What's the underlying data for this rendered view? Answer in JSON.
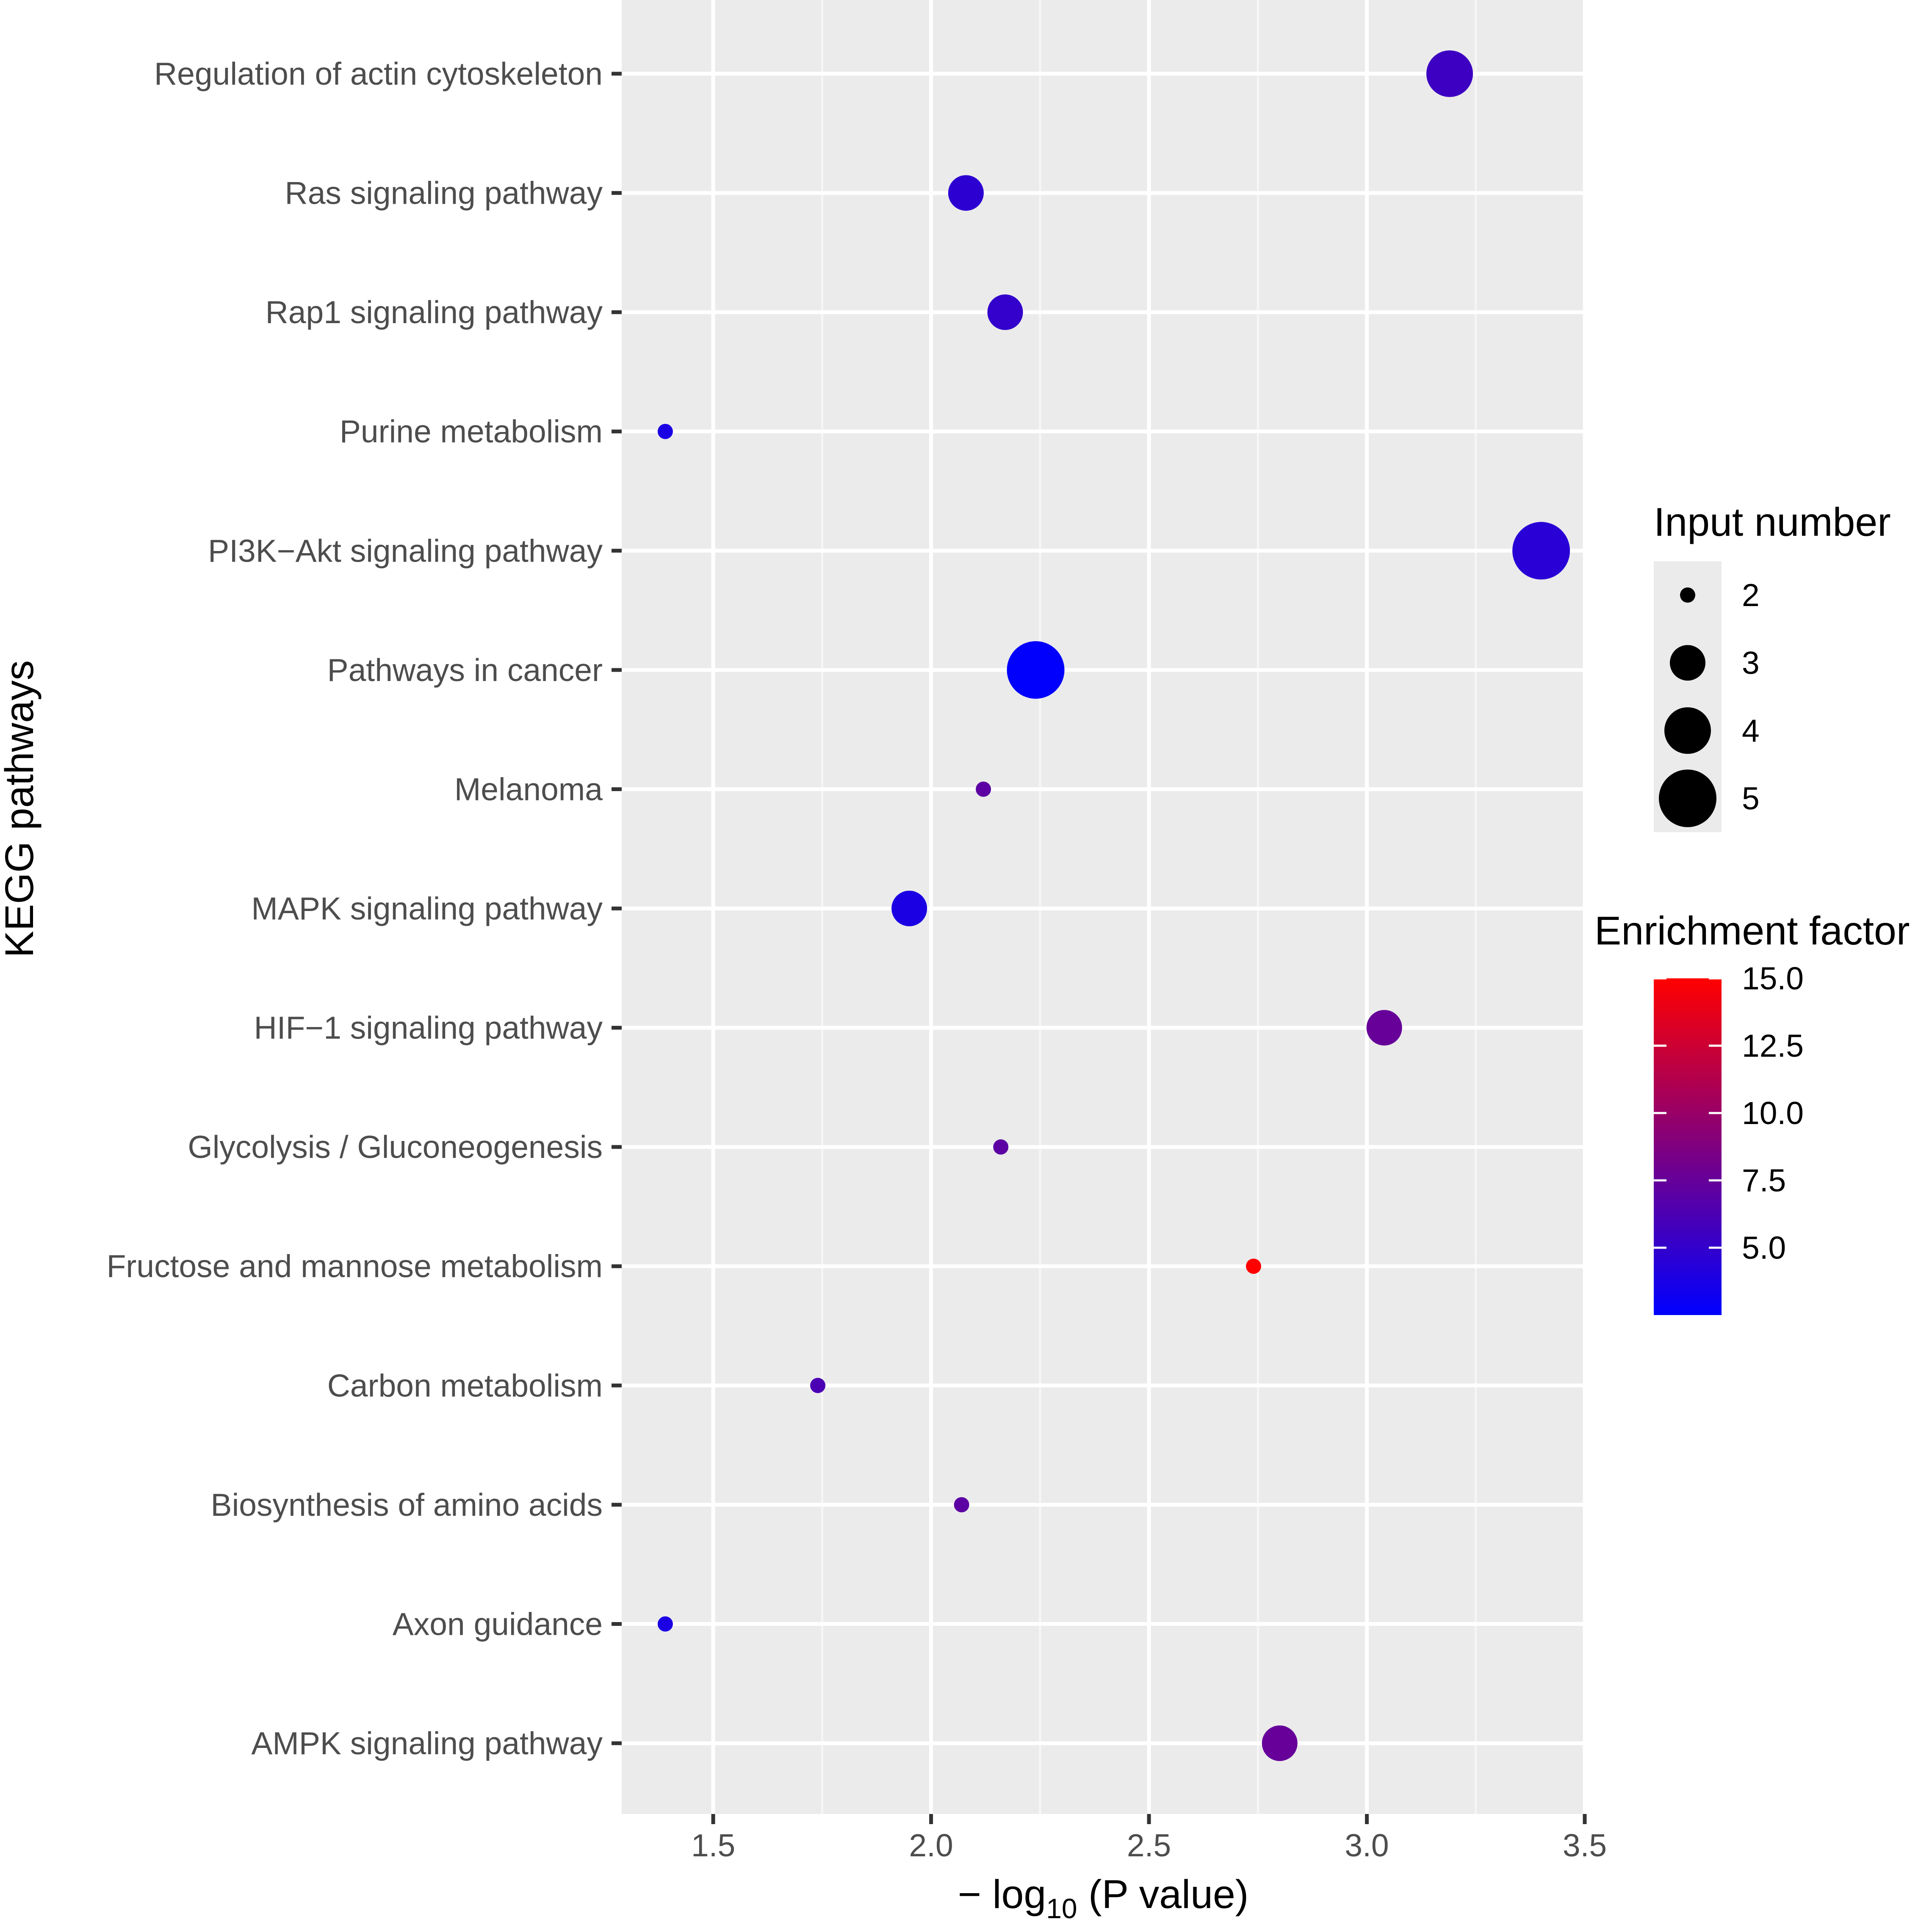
{
  "chart_data": {
    "type": "scatter",
    "title": "",
    "xlabel": {
      "prefix": "− log",
      "subscript": "10",
      "suffix": " (P value)"
    },
    "ylabel": "KEGG pathways",
    "xlim": [
      1.29,
      3.5
    ],
    "x_ticks": [
      1.5,
      2.0,
      2.5,
      3.0,
      3.5
    ],
    "x_tick_labels": [
      "1.5",
      "2.0",
      "2.5",
      "3.0",
      "3.5"
    ],
    "x_minor_gridlines": [
      1.25,
      1.75,
      2.25,
      2.75,
      3.25
    ],
    "grid": true,
    "categories": [
      "Regulation of actin cytoskeleton",
      "Ras signaling pathway",
      "Rap1 signaling pathway",
      "Purine metabolism",
      "PI3K−Akt signaling pathway",
      "Pathways in cancer",
      "Melanoma",
      "MAPK signaling pathway",
      "HIF−1 signaling pathway",
      "Glycolysis / Gluconeogenesis",
      "Fructose and mannose metabolism",
      "Carbon metabolism",
      "Biosynthesis of amino acids",
      "Axon guidance",
      "AMPK signaling pathway"
    ],
    "points": [
      {
        "pathway": "Regulation of actin cytoskeleton",
        "x": 3.19,
        "input_number": 4,
        "enrichment_factor": 5.5
      },
      {
        "pathway": "Ras signaling pathway",
        "x": 2.08,
        "input_number": 3,
        "enrichment_factor": 4.7
      },
      {
        "pathway": "Rap1 signaling pathway",
        "x": 2.17,
        "input_number": 3,
        "enrichment_factor": 5.0
      },
      {
        "pathway": "Purine metabolism",
        "x": 1.39,
        "input_number": 2,
        "enrichment_factor": 3.8
      },
      {
        "pathway": "PI3K−Akt signaling pathway",
        "x": 3.4,
        "input_number": 5,
        "enrichment_factor": 4.5
      },
      {
        "pathway": "Pathways in cancer",
        "x": 2.24,
        "input_number": 5,
        "enrichment_factor": 2.6
      },
      {
        "pathway": "Melanoma",
        "x": 2.12,
        "input_number": 2,
        "enrichment_factor": 7.0
      },
      {
        "pathway": "MAPK signaling pathway",
        "x": 1.95,
        "input_number": 3,
        "enrichment_factor": 3.8
      },
      {
        "pathway": "HIF−1 signaling pathway",
        "x": 3.04,
        "input_number": 3,
        "enrichment_factor": 7.5
      },
      {
        "pathway": "Glycolysis / Gluconeogenesis",
        "x": 2.16,
        "input_number": 2,
        "enrichment_factor": 7.0
      },
      {
        "pathway": "Fructose and mannose metabolism",
        "x": 2.74,
        "input_number": 2,
        "enrichment_factor": 15.0
      },
      {
        "pathway": "Carbon metabolism",
        "x": 1.74,
        "input_number": 2,
        "enrichment_factor": 6.2
      },
      {
        "pathway": "Biosynthesis of amino acids",
        "x": 2.07,
        "input_number": 2,
        "enrichment_factor": 7.0
      },
      {
        "pathway": "Axon guidance",
        "x": 1.39,
        "input_number": 2,
        "enrichment_factor": 3.8
      },
      {
        "pathway": "AMPK signaling pathway",
        "x": 2.8,
        "input_number": 3,
        "enrichment_factor": 7.5
      }
    ],
    "size_legend": {
      "title": "Input number",
      "values": [
        2,
        3,
        4,
        5
      ],
      "labels": [
        "2",
        "3",
        "4",
        "5"
      ]
    },
    "color_legend": {
      "title": "Enrichment factor",
      "range": [
        2.5,
        15.0
      ],
      "ticks": [
        5.0,
        7.5,
        10.0,
        12.5,
        15.0
      ],
      "labels": [
        "5.0",
        "7.5",
        "10.0",
        "12.5",
        "15.0"
      ],
      "low_color": "#0000ff",
      "high_color": "#ff0000"
    },
    "colors": {
      "panel_background": "#ebebeb",
      "grid_major": "#ffffff",
      "grid_minor": "#f6f6f6",
      "axis_text": "#4d4d4d",
      "tick_color": "#333333",
      "title_text": "#000000",
      "legend_key_background": "#ebebeb"
    }
  }
}
